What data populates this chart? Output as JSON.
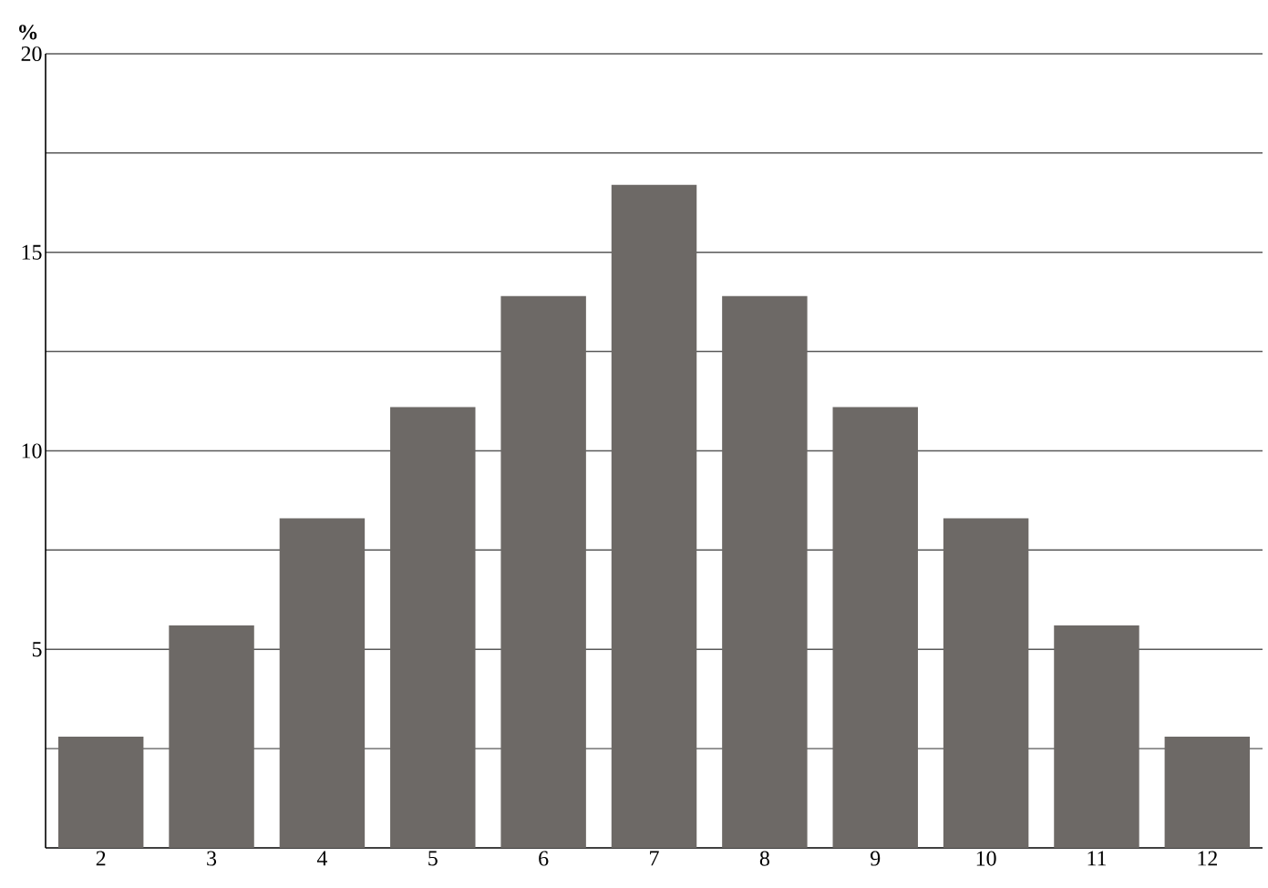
{
  "chart_data": {
    "type": "bar",
    "ylabel": "%",
    "categories": [
      "2",
      "3",
      "4",
      "5",
      "6",
      "7",
      "8",
      "9",
      "10",
      "11",
      "12"
    ],
    "values": [
      2.8,
      5.6,
      8.3,
      11.1,
      13.9,
      16.7,
      13.9,
      11.1,
      8.3,
      5.6,
      2.8
    ],
    "color": "#6d6966",
    "ylim": [
      0,
      20
    ],
    "yticks": [
      {
        "value": 2.5,
        "label": null
      },
      5,
      {
        "value": 7.5,
        "label": null
      },
      10,
      {
        "value": 12.5,
        "label": null
      },
      15,
      {
        "value": 17.5,
        "label": null
      },
      20
    ],
    "grid": "y"
  }
}
